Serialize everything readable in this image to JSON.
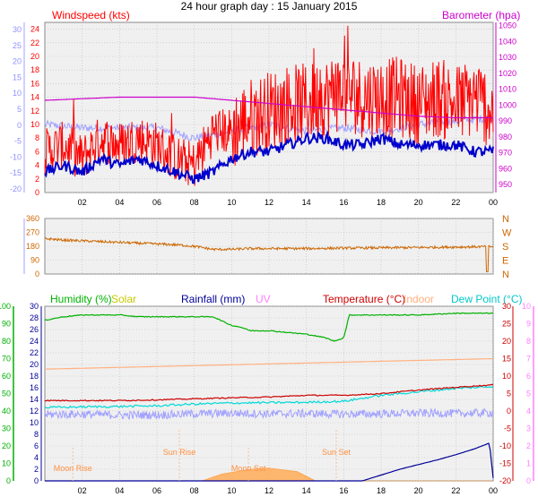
{
  "title": "24 hour graph day : 15 January 2015",
  "x_ticks": [
    "02",
    "04",
    "06",
    "08",
    "10",
    "12",
    "14",
    "16",
    "18",
    "20",
    "22",
    "00"
  ],
  "colors": {
    "wind": "#ff0000",
    "gust": "#0000cc",
    "baro": "#cc00cc",
    "chill": "#a0a0ff",
    "dir": "#cc6600",
    "humidity": "#00b000",
    "solar": "#c8c800",
    "rain": "#000099",
    "uv": "#ff80ff",
    "temp": "#cc0000",
    "indoor": "#ffb080",
    "dew": "#00d8d8",
    "moon": "#ffa040",
    "grid": "#bbbbbb",
    "panel": "#f0f0f0"
  },
  "chart_data": [
    {
      "type": "line",
      "title": "",
      "left_label": "Windspeed (kts)",
      "right_label": "Barometer (hpa)",
      "y_left_ticks": [
        24,
        22,
        20,
        18,
        16,
        14,
        12,
        10,
        8,
        6,
        4,
        2,
        0
      ],
      "y_left_range": [
        0,
        25
      ],
      "y_right_ticks": [
        1050,
        1040,
        1030,
        1020,
        1010,
        1000,
        990,
        980,
        970,
        960,
        950
      ],
      "y_right_range": [
        945,
        1052
      ],
      "y_left2_ticks": [
        30,
        25,
        20,
        15,
        10,
        5,
        0,
        -5,
        -10,
        -15,
        -20
      ],
      "series": [
        {
          "key": "wind_avg",
          "hours": [
            0,
            1,
            2,
            3,
            4,
            5,
            6,
            7,
            8,
            9,
            10,
            11,
            12,
            13,
            14,
            15,
            16,
            17,
            18,
            19,
            20,
            21,
            22,
            23,
            24
          ],
          "values": [
            6,
            7,
            5,
            8,
            7,
            8,
            7,
            5,
            4,
            9,
            9,
            11,
            12,
            13,
            13,
            14,
            15,
            14,
            14,
            14,
            13,
            14,
            13,
            14,
            12
          ]
        },
        {
          "key": "wind_gust",
          "hours": [
            0,
            1,
            2,
            3,
            4,
            5,
            6,
            7,
            8,
            9,
            10,
            11,
            12,
            13,
            14,
            15,
            16,
            17,
            18,
            19,
            20,
            21,
            22,
            23,
            24
          ],
          "values": [
            3,
            4,
            3,
            5,
            4,
            5,
            4,
            3,
            2,
            3,
            5,
            6,
            6,
            7,
            8,
            8,
            7,
            7,
            8,
            7,
            7,
            7,
            7,
            6,
            6
          ]
        },
        {
          "key": "barometer",
          "hours": [
            0,
            2,
            4,
            6,
            8,
            10,
            12,
            14,
            16,
            18,
            20,
            22,
            24
          ],
          "values": [
            1003,
            1004,
            1005,
            1005,
            1005,
            1003,
            1001,
            999,
            997,
            995,
            993,
            992,
            992
          ]
        },
        {
          "key": "windchill",
          "hours": [
            0,
            2,
            4,
            6,
            8,
            10,
            12,
            14,
            16,
            18,
            20,
            22,
            24
          ],
          "values": [
            10,
            9.5,
            9.5,
            9.5,
            8,
            9,
            10,
            9,
            9.5,
            9,
            10,
            10.5,
            11
          ]
        }
      ]
    },
    {
      "type": "line",
      "title": "",
      "y_left_ticks": [
        360,
        270,
        180,
        90,
        0
      ],
      "y_right_labels": [
        "N",
        "W",
        "S",
        "E",
        "N"
      ],
      "series": [
        {
          "key": "wind_dir",
          "hours": [
            0,
            1,
            2,
            3,
            4,
            5,
            6,
            7,
            8,
            9,
            10,
            11,
            12,
            14,
            16,
            18,
            20,
            22,
            24
          ],
          "values": [
            230,
            220,
            215,
            210,
            205,
            200,
            195,
            190,
            180,
            160,
            160,
            165,
            165,
            165,
            168,
            170,
            172,
            175,
            178
          ]
        }
      ]
    },
    {
      "type": "line",
      "title": "",
      "labels": {
        "humidity": "Humidity (%)",
        "solar": "Solar",
        "rain": "Rainfall (mm)",
        "uv": "UV",
        "temp": "Temperature (°C)",
        "indoor": "Indoor",
        "dew": "Dew Point (°C)"
      },
      "y_hum_ticks": [
        100,
        90,
        80,
        70,
        60,
        50,
        40,
        30,
        20,
        10,
        0
      ],
      "y_rain_ticks": [
        30,
        28,
        26,
        24,
        22,
        20,
        18,
        16,
        14,
        12,
        10,
        8,
        6,
        4,
        2,
        0
      ],
      "y_temp_ticks": [
        30,
        25,
        20,
        15,
        10,
        5,
        0,
        -5,
        -10,
        -15,
        -20
      ],
      "y_uv_ticks": [
        10,
        9,
        8,
        7,
        6,
        5,
        4,
        3,
        2,
        1,
        0
      ],
      "annotations": [
        {
          "text": "Moon Rise",
          "hour": 1.5
        },
        {
          "text": "Sun Rise",
          "hour": 7.2
        },
        {
          "text": "Moon Set",
          "hour": 10.9
        },
        {
          "text": "Sun Set",
          "hour": 15.6
        }
      ],
      "series": [
        {
          "key": "humidity",
          "hours": [
            0,
            1,
            2,
            3,
            4,
            5,
            6,
            7,
            8,
            9,
            10,
            10.5,
            11,
            12,
            13,
            14,
            15,
            15.5,
            16,
            16.3,
            17,
            18,
            20,
            22,
            24
          ],
          "values": [
            92,
            94,
            95,
            95,
            95,
            94,
            94,
            94,
            94,
            94,
            89,
            88,
            86,
            86,
            85,
            84,
            82,
            80,
            82,
            95,
            95,
            95,
            95,
            96,
            96
          ]
        },
        {
          "key": "temperature",
          "hours": [
            0,
            2,
            4,
            6,
            8,
            10,
            12,
            14,
            16,
            18,
            20,
            22,
            24
          ],
          "values": [
            3,
            3,
            3,
            3.2,
            3.5,
            3.8,
            4,
            4.5,
            4.5,
            5,
            6,
            6.8,
            7.5
          ]
        },
        {
          "key": "dewpoint",
          "hours": [
            0,
            2,
            4,
            6,
            8,
            10,
            12,
            14,
            16,
            18,
            20,
            22,
            24
          ],
          "values": [
            1,
            1.2,
            1.3,
            1.5,
            2,
            2.3,
            2.4,
            2.5,
            2.8,
            4.5,
            5.5,
            6.5,
            7
          ]
        },
        {
          "key": "indoor",
          "hours": [
            0,
            4,
            8,
            12,
            16,
            20,
            24
          ],
          "values": [
            12,
            12.5,
            13,
            13.5,
            14,
            14.5,
            15
          ]
        },
        {
          "key": "uv_band",
          "hours": [
            0,
            2,
            4,
            6,
            8,
            10,
            12,
            14,
            16,
            18,
            20,
            22,
            24
          ],
          "values": [
            3,
            3.1,
            2.8,
            2.9,
            3.2,
            3.4,
            3.2,
            3.3,
            3.1,
            3.2,
            3.4,
            3.3,
            3.5
          ]
        },
        {
          "key": "rainfall",
          "hours": [
            0,
            17,
            18,
            19,
            20,
            21,
            22,
            23,
            23.8,
            24
          ],
          "values": [
            0,
            0,
            1,
            2,
            2.8,
            3.6,
            4.5,
            5.5,
            6.5,
            0.5
          ]
        },
        {
          "key": "solar",
          "hours": [
            0,
            8.4,
            9.5,
            11,
            12,
            13.5,
            14.5,
            24
          ],
          "values": [
            0,
            0,
            1.2,
            2,
            2.2,
            1.6,
            0,
            0
          ]
        }
      ]
    }
  ]
}
